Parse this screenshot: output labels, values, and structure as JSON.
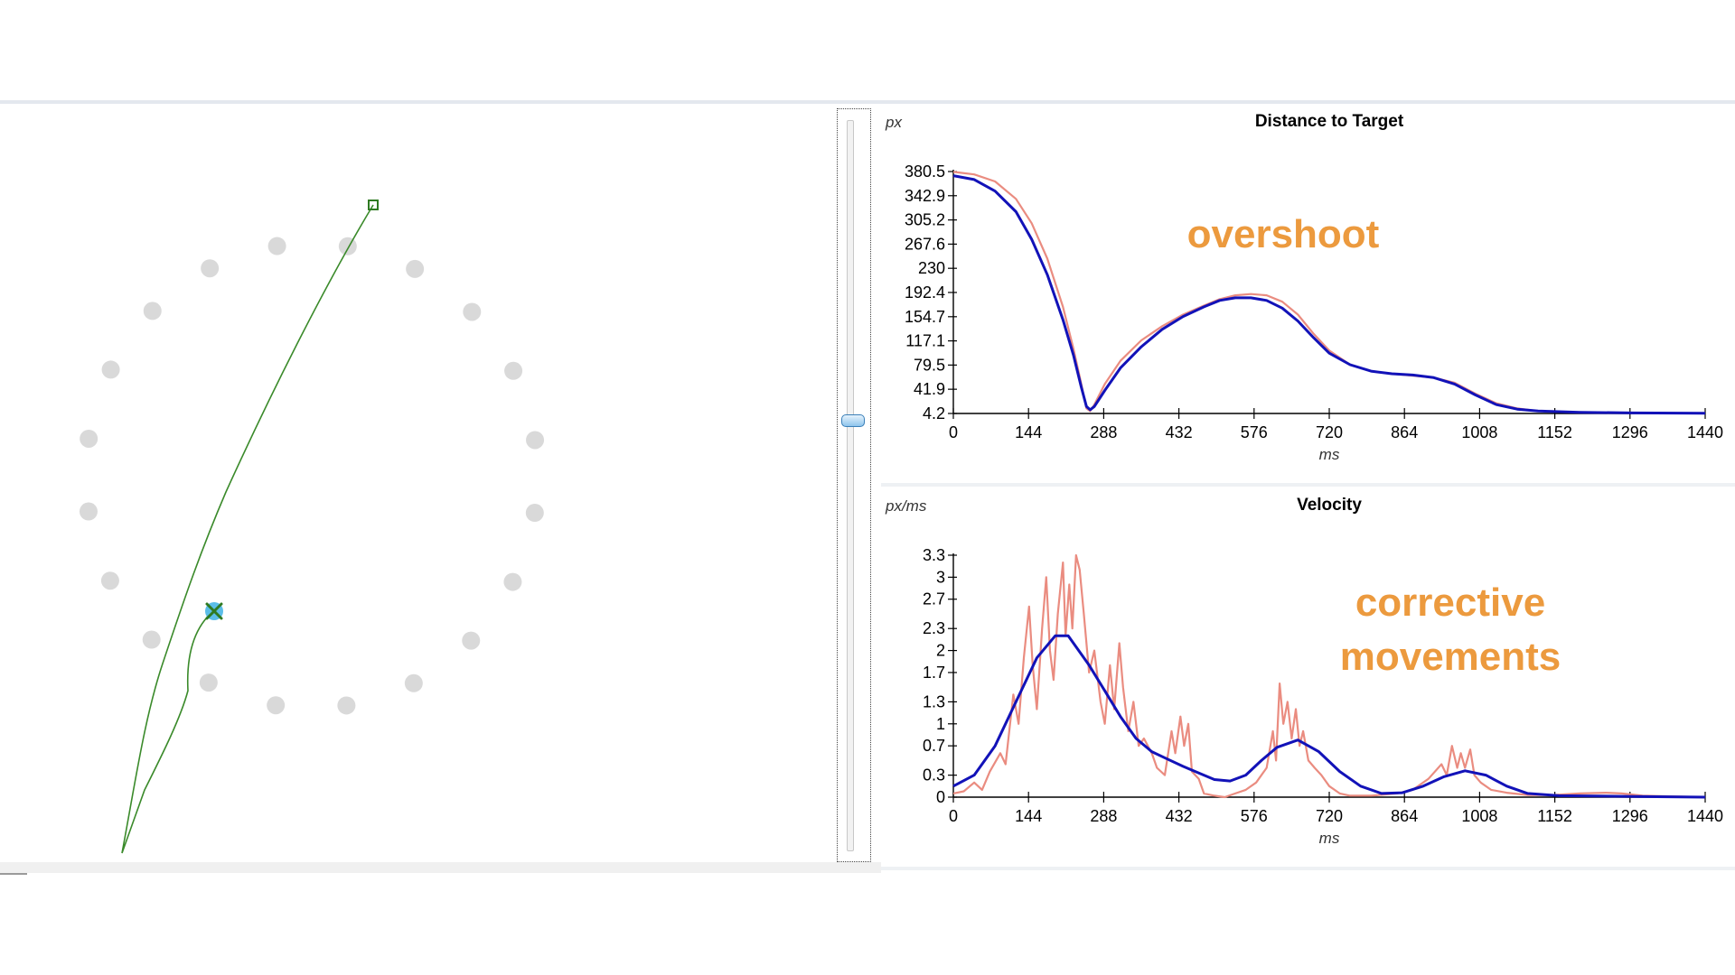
{
  "colors": {
    "raw": "#ea8c80",
    "smoothed": "#1212b8",
    "path": "#3a8a2a",
    "target": "#5bbde8",
    "dots": "#d9d9d9",
    "annotation": "#ec9a3e"
  },
  "icons": {
    "end-marker": "x-mark-icon",
    "start-marker": "square-marker-icon"
  },
  "slider": {
    "value_fraction": 0.41
  },
  "annotations": {
    "overshoot": "overshoot",
    "corrective_line1": "corrective",
    "corrective_line2": "movements"
  },
  "chart_data": [
    {
      "type": "line",
      "title": "Distance to Target",
      "xlabel": "ms",
      "ylabel": "px",
      "xlim": [
        0,
        1440
      ],
      "ylim": [
        4.2,
        380.5
      ],
      "x_ticks": [
        "0",
        "144",
        "288",
        "432",
        "576",
        "720",
        "864",
        "1008",
        "1152",
        "1296",
        "1440"
      ],
      "y_ticks": [
        "4.2",
        "41.9",
        "79.5",
        "117.1",
        "154.7",
        "192.4",
        "230",
        "267.6",
        "305.2",
        "342.9",
        "380.5"
      ],
      "series": [
        {
          "values_xy": [
            [
              0,
              380
            ],
            [
              40,
              376
            ],
            [
              80,
              365
            ],
            [
              120,
              338
            ],
            [
              150,
              300
            ],
            [
              180,
              245
            ],
            [
              210,
              170
            ],
            [
              230,
              105
            ],
            [
              245,
              50
            ],
            [
              255,
              12
            ],
            [
              262,
              8
            ],
            [
              270,
              18
            ],
            [
              290,
              50
            ],
            [
              320,
              86
            ],
            [
              360,
              118
            ],
            [
              400,
              140
            ],
            [
              440,
              158
            ],
            [
              480,
              172
            ],
            [
              510,
              182
            ],
            [
              540,
              188
            ],
            [
              570,
              190
            ],
            [
              600,
              188
            ],
            [
              630,
              178
            ],
            [
              660,
              158
            ],
            [
              690,
              128
            ],
            [
              720,
              102
            ],
            [
              760,
              80
            ],
            [
              800,
              70
            ],
            [
              840,
              66
            ],
            [
              880,
              63
            ],
            [
              920,
              60
            ],
            [
              960,
              52
            ],
            [
              1000,
              35
            ],
            [
              1040,
              20
            ],
            [
              1080,
              12
            ],
            [
              1120,
              8
            ],
            [
              1200,
              6
            ],
            [
              1300,
              5
            ],
            [
              1440,
              4.5
            ]
          ]
        },
        {
          "values_xy": [
            [
              0,
              374
            ],
            [
              40,
              368
            ],
            [
              80,
              350
            ],
            [
              120,
              318
            ],
            [
              150,
              275
            ],
            [
              180,
              220
            ],
            [
              210,
              150
            ],
            [
              230,
              95
            ],
            [
              245,
              45
            ],
            [
              255,
              15
            ],
            [
              262,
              10
            ],
            [
              270,
              15
            ],
            [
              290,
              40
            ],
            [
              320,
              75
            ],
            [
              360,
              108
            ],
            [
              400,
              135
            ],
            [
              440,
              155
            ],
            [
              480,
              170
            ],
            [
              510,
              180
            ],
            [
              540,
              184
            ],
            [
              570,
              184
            ],
            [
              600,
              180
            ],
            [
              630,
              168
            ],
            [
              660,
              148
            ],
            [
              690,
              122
            ],
            [
              720,
              98
            ],
            [
              760,
              80
            ],
            [
              800,
              70
            ],
            [
              840,
              66
            ],
            [
              880,
              64
            ],
            [
              920,
              60
            ],
            [
              960,
              50
            ],
            [
              1000,
              33
            ],
            [
              1040,
              18
            ],
            [
              1080,
              11
            ],
            [
              1120,
              8
            ],
            [
              1200,
              6
            ],
            [
              1300,
              5
            ],
            [
              1440,
              4.5
            ]
          ]
        }
      ]
    },
    {
      "type": "line",
      "title": "Velocity",
      "xlabel": "ms",
      "ylabel": "px/ms",
      "xlim": [
        0,
        1440
      ],
      "ylim": [
        0,
        3.3
      ],
      "x_ticks": [
        "0",
        "144",
        "288",
        "432",
        "576",
        "720",
        "864",
        "1008",
        "1152",
        "1296",
        "1440"
      ],
      "y_ticks": [
        "0",
        "0.3",
        "0.7",
        "1",
        "1.3",
        "1.7",
        "2",
        "2.3",
        "2.7",
        "3",
        "3.3"
      ],
      "series": [
        {
          "values_xy": [
            [
              0,
              0.05
            ],
            [
              20,
              0.08
            ],
            [
              40,
              0.2
            ],
            [
              55,
              0.1
            ],
            [
              70,
              0.35
            ],
            [
              90,
              0.6
            ],
            [
              100,
              0.45
            ],
            [
              115,
              1.4
            ],
            [
              125,
              1.0
            ],
            [
              135,
              1.9
            ],
            [
              145,
              2.6
            ],
            [
              152,
              1.8
            ],
            [
              160,
              1.2
            ],
            [
              170,
              2.3
            ],
            [
              178,
              3.0
            ],
            [
              185,
              2.0
            ],
            [
              192,
              1.6
            ],
            [
              200,
              2.5
            ],
            [
              210,
              3.2
            ],
            [
              215,
              2.2
            ],
            [
              222,
              2.9
            ],
            [
              228,
              2.3
            ],
            [
              235,
              3.3
            ],
            [
              242,
              3.1
            ],
            [
              250,
              2.5
            ],
            [
              260,
              1.7
            ],
            [
              270,
              2.0
            ],
            [
              282,
              1.3
            ],
            [
              290,
              1.0
            ],
            [
              300,
              1.8
            ],
            [
              308,
              1.2
            ],
            [
              318,
              2.1
            ],
            [
              325,
              1.5
            ],
            [
              335,
              0.9
            ],
            [
              345,
              1.3
            ],
            [
              355,
              0.7
            ],
            [
              365,
              0.8
            ],
            [
              380,
              0.6
            ],
            [
              390,
              0.4
            ],
            [
              405,
              0.3
            ],
            [
              418,
              0.9
            ],
            [
              425,
              0.6
            ],
            [
              435,
              1.1
            ],
            [
              442,
              0.7
            ],
            [
              450,
              1.0
            ],
            [
              457,
              0.35
            ],
            [
              470,
              0.25
            ],
            [
              480,
              0.05
            ],
            [
              500,
              0.02
            ],
            [
              520,
              0.0
            ],
            [
              540,
              0.05
            ],
            [
              560,
              0.1
            ],
            [
              580,
              0.2
            ],
            [
              600,
              0.4
            ],
            [
              612,
              0.9
            ],
            [
              618,
              0.5
            ],
            [
              625,
              1.55
            ],
            [
              632,
              1.0
            ],
            [
              640,
              1.3
            ],
            [
              648,
              0.8
            ],
            [
              656,
              1.2
            ],
            [
              663,
              0.7
            ],
            [
              670,
              0.9
            ],
            [
              680,
              0.5
            ],
            [
              692,
              0.4
            ],
            [
              705,
              0.3
            ],
            [
              720,
              0.15
            ],
            [
              740,
              0.05
            ],
            [
              760,
              0.02
            ],
            [
              800,
              0.02
            ],
            [
              850,
              0.05
            ],
            [
              880,
              0.1
            ],
            [
              910,
              0.25
            ],
            [
              935,
              0.45
            ],
            [
              945,
              0.3
            ],
            [
              955,
              0.7
            ],
            [
              965,
              0.4
            ],
            [
              972,
              0.6
            ],
            [
              980,
              0.4
            ],
            [
              990,
              0.65
            ],
            [
              998,
              0.3
            ],
            [
              1010,
              0.2
            ],
            [
              1030,
              0.1
            ],
            [
              1060,
              0.06
            ],
            [
              1100,
              0.03
            ],
            [
              1150,
              0.03
            ],
            [
              1200,
              0.05
            ],
            [
              1250,
              0.06
            ],
            [
              1280,
              0.05
            ],
            [
              1320,
              0.02
            ],
            [
              1380,
              0.01
            ],
            [
              1440,
              0.0
            ]
          ]
        },
        {
          "values_xy": [
            [
              0,
              0.15
            ],
            [
              40,
              0.3
            ],
            [
              80,
              0.7
            ],
            [
              120,
              1.3
            ],
            [
              160,
              1.9
            ],
            [
              195,
              2.2
            ],
            [
              220,
              2.2
            ],
            [
              260,
              1.8
            ],
            [
              290,
              1.45
            ],
            [
              320,
              1.1
            ],
            [
              350,
              0.8
            ],
            [
              380,
              0.62
            ],
            [
              410,
              0.52
            ],
            [
              440,
              0.42
            ],
            [
              470,
              0.33
            ],
            [
              500,
              0.24
            ],
            [
              530,
              0.22
            ],
            [
              560,
              0.3
            ],
            [
              590,
              0.5
            ],
            [
              620,
              0.68
            ],
            [
              660,
              0.78
            ],
            [
              700,
              0.62
            ],
            [
              740,
              0.35
            ],
            [
              780,
              0.15
            ],
            [
              820,
              0.05
            ],
            [
              860,
              0.06
            ],
            [
              900,
              0.15
            ],
            [
              940,
              0.28
            ],
            [
              980,
              0.36
            ],
            [
              1020,
              0.3
            ],
            [
              1060,
              0.15
            ],
            [
              1100,
              0.05
            ],
            [
              1160,
              0.02
            ],
            [
              1300,
              0.01
            ],
            [
              1440,
              0.0
            ]
          ]
        }
      ]
    }
  ]
}
